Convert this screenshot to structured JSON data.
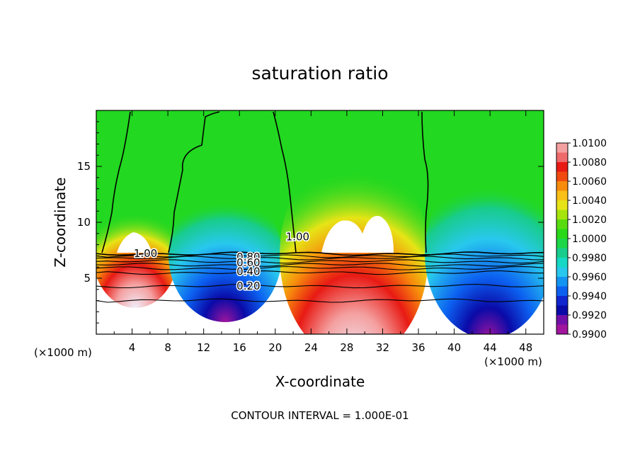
{
  "chart_data": {
    "type": "contour",
    "title": "saturation ratio",
    "xlabel": "X-coordinate",
    "ylabel": "Z-coordinate",
    "x_unit_left": "(×1000 m)",
    "x_unit_right": "(×1000 m)",
    "footer": "CONTOUR INTERVAL = 1.000E-01",
    "xlim": [
      0,
      50
    ],
    "ylim": [
      0,
      20
    ],
    "x_ticks": [
      4,
      8,
      12,
      16,
      20,
      24,
      28,
      32,
      36,
      40,
      44,
      48
    ],
    "x_tick_labels": [
      "4",
      "8",
      "12",
      "16",
      "20",
      "24",
      "28",
      "32",
      "36",
      "40",
      "44",
      "48"
    ],
    "y_ticks": [
      5,
      10,
      15
    ],
    "y_tick_labels": [
      "5",
      "10",
      "15"
    ],
    "contour_interval": 0.1,
    "contour_labels": [
      {
        "text": "1.00",
        "x": 5.5,
        "z": 7.2
      },
      {
        "text": "1.00",
        "x": 22.5,
        "z": 8.7
      },
      {
        "text": "0.80",
        "x": 17.0,
        "z": 6.9
      },
      {
        "text": "0.60",
        "x": 17.0,
        "z": 6.4
      },
      {
        "text": "0.40",
        "x": 17.0,
        "z": 5.6
      },
      {
        "text": "0.20",
        "x": 17.0,
        "z": 4.3
      }
    ],
    "lower_contours": [
      {
        "level": 1.0,
        "z": 7.2
      },
      {
        "level": 0.9,
        "z": 7.0
      },
      {
        "level": 0.8,
        "z": 6.8
      },
      {
        "level": 0.7,
        "z": 6.5
      },
      {
        "level": 0.6,
        "z": 6.2
      },
      {
        "level": 0.5,
        "z": 5.9
      },
      {
        "level": 0.4,
        "z": 5.5
      },
      {
        "level": 0.2,
        "z": 4.3
      },
      {
        "level": 0.1,
        "z": 3.0
      }
    ],
    "colorbar": {
      "ticks": [
        "1.0100",
        "1.0080",
        "1.0060",
        "1.0040",
        "1.0020",
        "1.0000",
        "0.9980",
        "0.9960",
        "0.9940",
        "0.9920",
        "0.9900"
      ],
      "colors": [
        "#f4a0a0",
        "#ef6a6a",
        "#e81a14",
        "#f04a10",
        "#f78c0c",
        "#f8c018",
        "#e6e416",
        "#a6e40e",
        "#58dc10",
        "#2ad81a",
        "#1cd648",
        "#18cc8c",
        "#16d8c4",
        "#28c8ee",
        "#1494f2",
        "#0c60f0",
        "#1026ce",
        "#0a0aa8",
        "#7010a8",
        "#a0149e"
      ]
    }
  }
}
